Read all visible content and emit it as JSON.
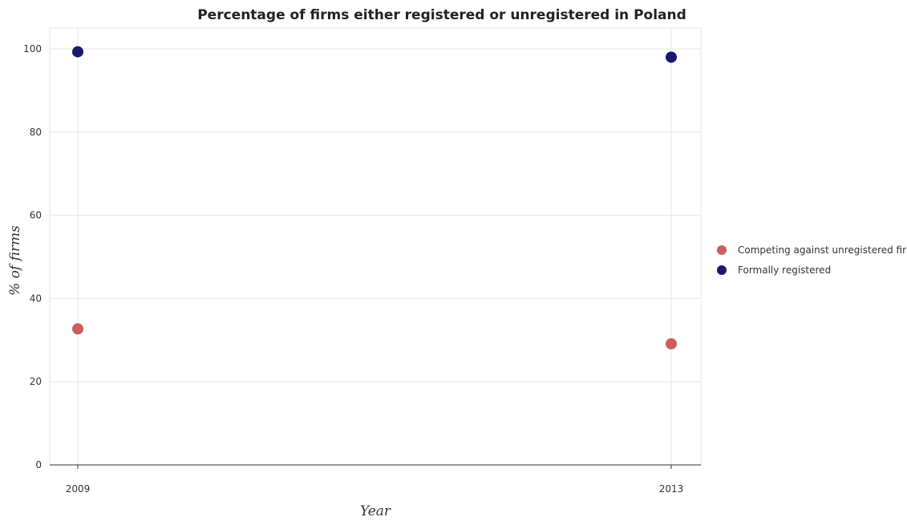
{
  "chart_data": {
    "type": "scatter",
    "title": "Percentage of firms either registered or unregistered in Poland",
    "xlabel": "Year",
    "ylabel": "% of firms",
    "categories": [
      "2009",
      "2013"
    ],
    "ylim": [
      0,
      105
    ],
    "yticks": [
      0,
      20,
      40,
      60,
      80,
      100
    ],
    "grid": true,
    "legend_position": "right",
    "series": [
      {
        "name": "Competing against unregistered firms",
        "color": "#cd5c5c",
        "values": [
          32.7,
          29.1
        ]
      },
      {
        "name": "Formally registered",
        "color": "#191970",
        "values": [
          99.3,
          98.0
        ]
      }
    ]
  }
}
